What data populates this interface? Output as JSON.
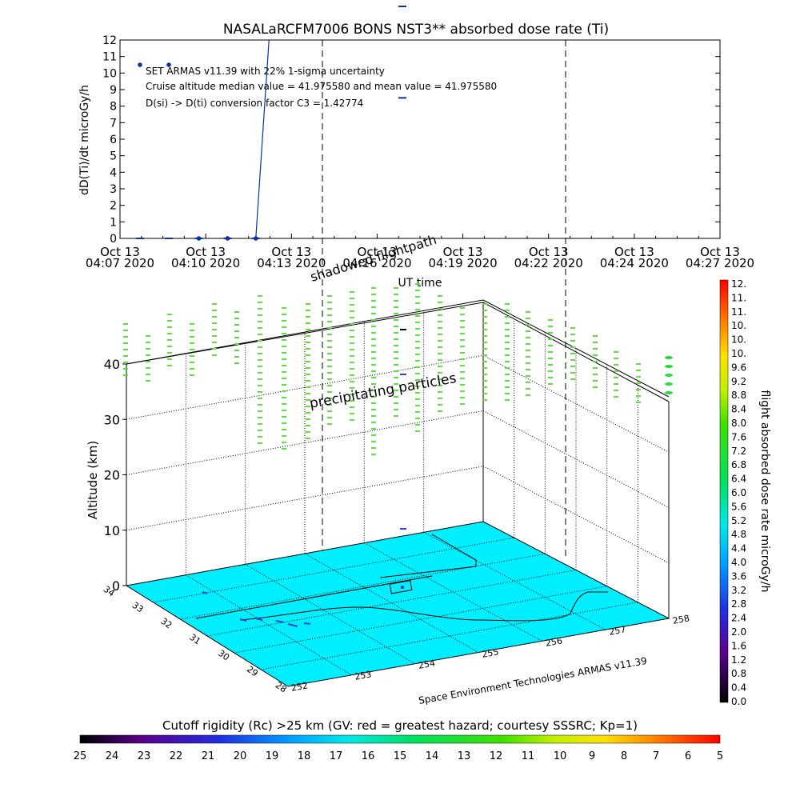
{
  "chart_data": [
    {
      "type": "scatter",
      "title": "NASALaRCFM7006   BONS NST3** absorbed dose rate (Ti)",
      "ylabel": "dD(Ti)/dt microGy/h",
      "xlabel": "UT time",
      "ylim": [
        0,
        12
      ],
      "yticks": [
        "0",
        "1",
        "2",
        "3",
        "4",
        "5",
        "6",
        "7",
        "8",
        "9",
        "10",
        "11",
        "12"
      ],
      "xticks": [
        {
          "top": "Oct 13",
          "bottom": "04:07 2020"
        },
        {
          "top": "Oct 13",
          "bottom": "04:10 2020"
        },
        {
          "top": "Oct 13",
          "bottom": "04:13 2020"
        },
        {
          "top": "Oct 13",
          "bottom": "04:16 2020"
        },
        {
          "top": "Oct 13",
          "bottom": "04:19 2020"
        },
        {
          "top": "Oct 13",
          "bottom": "04:22 2020"
        },
        {
          "top": "Oct 13",
          "bottom": "04:24 2020"
        },
        {
          "top": "Oct 13",
          "bottom": "04:27 2020"
        }
      ],
      "annotations": [
        "SET ARMAS v11.39 with 22% 1-sigma uncertainty",
        "Cruise altitude median value = 41.975580 and mean value = 41.975580",
        "D(si) -> D(ti) conversion factor C3 = 1.42774"
      ],
      "points_x_frac": [
        0.0,
        0.048,
        0.098,
        0.146,
        0.193
      ],
      "points_y": [
        10.5,
        10.5,
        0,
        0,
        0
      ],
      "baseline_points_x_frac": [
        0.0,
        0.048,
        0.098,
        0.146,
        0.193
      ],
      "line_x_frac": [
        0.193,
        0.215
      ],
      "line_y": [
        0,
        12
      ],
      "marker_x_frac": 0.5,
      "marker_y": [
        8.5,
        14
      ],
      "dashed_x_frac": [
        0.347,
        0.787
      ],
      "color": "#0a2fb0"
    },
    {
      "type": "3d-scatter",
      "zlabel": "Altitude (km)",
      "zticks": [
        "0",
        "10",
        "20",
        "30",
        "40"
      ],
      "lat_ticks": [
        "34",
        "33",
        "32",
        "31",
        "30",
        "29",
        "28"
      ],
      "lon_ticks": [
        "252",
        "253",
        "254",
        "255",
        "256",
        "257",
        "258"
      ],
      "annotations": [
        "shadowed flightpath",
        "precipitating particles"
      ],
      "credit": "Space Environment Technologies ARMAS v11.39",
      "surface_color": "#00eeff"
    }
  ],
  "colorbar_right": {
    "label": "flight absorbed dose rate microGy/h",
    "ticks": [
      "12.",
      "11.",
      "11.",
      "10.",
      "10.",
      "10.",
      "9.6",
      "9.2",
      "8.8",
      "8.4",
      "8.0",
      "7.6",
      "7.2",
      "6.8",
      "6.4",
      "6.0",
      "5.6",
      "5.2",
      "4.8",
      "4.4",
      "4.0",
      "3.6",
      "3.2",
      "2.8",
      "2.4",
      "2.0",
      "1.6",
      "1.2",
      "0.8",
      "0.4",
      "0.0"
    ]
  },
  "colorbar_bottom": {
    "title": "Cutoff rigidity (Rc) >25 km (GV: red = greatest hazard; courtesy SSSRC; Kp=1)",
    "ticks": [
      "25",
      "24",
      "23",
      "22",
      "21",
      "20",
      "19",
      "18",
      "17",
      "16",
      "15",
      "14",
      "13",
      "12",
      "11",
      "10",
      "9",
      "8",
      "7",
      "6",
      "5"
    ]
  }
}
